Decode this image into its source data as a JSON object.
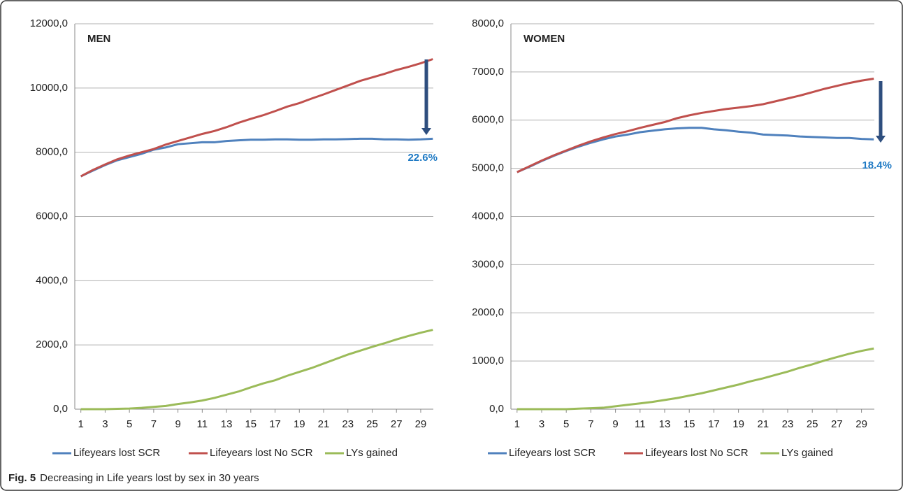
{
  "caption": {
    "label": "Fig. 5",
    "text": "Decreasing in Life years lost by sex in 30 years"
  },
  "chart_data": [
    {
      "type": "line",
      "title": "MEN",
      "annotation": "22.6%",
      "x": [
        1,
        2,
        3,
        4,
        5,
        6,
        7,
        8,
        9,
        10,
        11,
        12,
        13,
        14,
        15,
        16,
        17,
        18,
        19,
        20,
        21,
        22,
        23,
        24,
        25,
        26,
        27,
        28,
        29,
        30
      ],
      "xlim": [
        0.5,
        30.5
      ],
      "xticks": [
        1,
        3,
        5,
        7,
        9,
        11,
        13,
        15,
        17,
        19,
        21,
        23,
        25,
        27,
        29
      ],
      "ylim": [
        0,
        12000
      ],
      "yticks": [
        {
          "value": 0,
          "label": "0,0"
        },
        {
          "value": 2000,
          "label": "2000,0"
        },
        {
          "value": 4000,
          "label": "4000,0"
        },
        {
          "value": 6000,
          "label": "6000,0"
        },
        {
          "value": 8000,
          "label": "8000,0"
        },
        {
          "value": 10000,
          "label": "10000,0"
        },
        {
          "value": 12000,
          "label": "12000,0"
        }
      ],
      "grid": true,
      "legend": "bottom",
      "series": [
        {
          "name": "Lifeyears lost SCR",
          "color": "#4f81bd",
          "values": [
            7250,
            7430,
            7600,
            7750,
            7850,
            7950,
            8080,
            8150,
            8250,
            8280,
            8310,
            8310,
            8350,
            8370,
            8390,
            8390,
            8400,
            8400,
            8390,
            8390,
            8400,
            8400,
            8410,
            8420,
            8420,
            8400,
            8400,
            8390,
            8400,
            8420
          ]
        },
        {
          "name": "Lifeyears lost No SCR",
          "color": "#c0504d",
          "values": [
            7250,
            7450,
            7620,
            7780,
            7900,
            8000,
            8100,
            8240,
            8350,
            8460,
            8570,
            8660,
            8780,
            8920,
            9040,
            9150,
            9280,
            9420,
            9530,
            9670,
            9800,
            9940,
            10080,
            10220,
            10330,
            10440,
            10560,
            10660,
            10770,
            10900
          ]
        },
        {
          "name": "LYs gained",
          "color": "#9bbb59",
          "values": [
            0,
            0,
            0,
            10,
            20,
            40,
            70,
            100,
            160,
            210,
            270,
            350,
            450,
            550,
            680,
            800,
            900,
            1040,
            1160,
            1280,
            1420,
            1560,
            1700,
            1820,
            1940,
            2050,
            2170,
            2280,
            2380,
            2470
          ]
        }
      ]
    },
    {
      "type": "line",
      "title": "WOMEN",
      "annotation": "18.4%",
      "x": [
        1,
        2,
        3,
        4,
        5,
        6,
        7,
        8,
        9,
        10,
        11,
        12,
        13,
        14,
        15,
        16,
        17,
        18,
        19,
        20,
        21,
        22,
        23,
        24,
        25,
        26,
        27,
        28,
        29,
        30
      ],
      "xlim": [
        0.5,
        30.5
      ],
      "xticks": [
        1,
        3,
        5,
        7,
        9,
        11,
        13,
        15,
        17,
        19,
        21,
        23,
        25,
        27,
        29
      ],
      "ylim": [
        0,
        8000
      ],
      "yticks": [
        {
          "value": 0,
          "label": "0,0"
        },
        {
          "value": 1000,
          "label": "1000,0"
        },
        {
          "value": 2000,
          "label": "2000,0"
        },
        {
          "value": 3000,
          "label": "3000,0"
        },
        {
          "value": 4000,
          "label": "4000,0"
        },
        {
          "value": 5000,
          "label": "5000,0"
        },
        {
          "value": 6000,
          "label": "6000,0"
        },
        {
          "value": 7000,
          "label": "7000,0"
        },
        {
          "value": 8000,
          "label": "8000,0"
        }
      ],
      "grid": true,
      "legend": "bottom",
      "series": [
        {
          "name": "Lifeyears lost SCR",
          "color": "#4f81bd",
          "values": [
            4920,
            5030,
            5150,
            5260,
            5360,
            5450,
            5530,
            5600,
            5660,
            5700,
            5750,
            5780,
            5810,
            5830,
            5840,
            5840,
            5810,
            5790,
            5760,
            5740,
            5700,
            5690,
            5680,
            5660,
            5650,
            5640,
            5630,
            5630,
            5610,
            5600
          ]
        },
        {
          "name": "Lifeyears lost No SCR",
          "color": "#c0504d",
          "values": [
            4920,
            5040,
            5160,
            5270,
            5370,
            5470,
            5560,
            5640,
            5710,
            5770,
            5840,
            5900,
            5960,
            6040,
            6100,
            6150,
            6190,
            6230,
            6260,
            6290,
            6330,
            6390,
            6450,
            6510,
            6580,
            6650,
            6710,
            6770,
            6820,
            6860
          ]
        },
        {
          "name": "LYs gained",
          "color": "#9bbb59",
          "values": [
            0,
            0,
            0,
            0,
            0,
            10,
            20,
            30,
            60,
            90,
            120,
            150,
            190,
            230,
            280,
            330,
            390,
            450,
            510,
            580,
            640,
            710,
            780,
            860,
            930,
            1010,
            1080,
            1150,
            1210,
            1260
          ]
        }
      ]
    }
  ]
}
